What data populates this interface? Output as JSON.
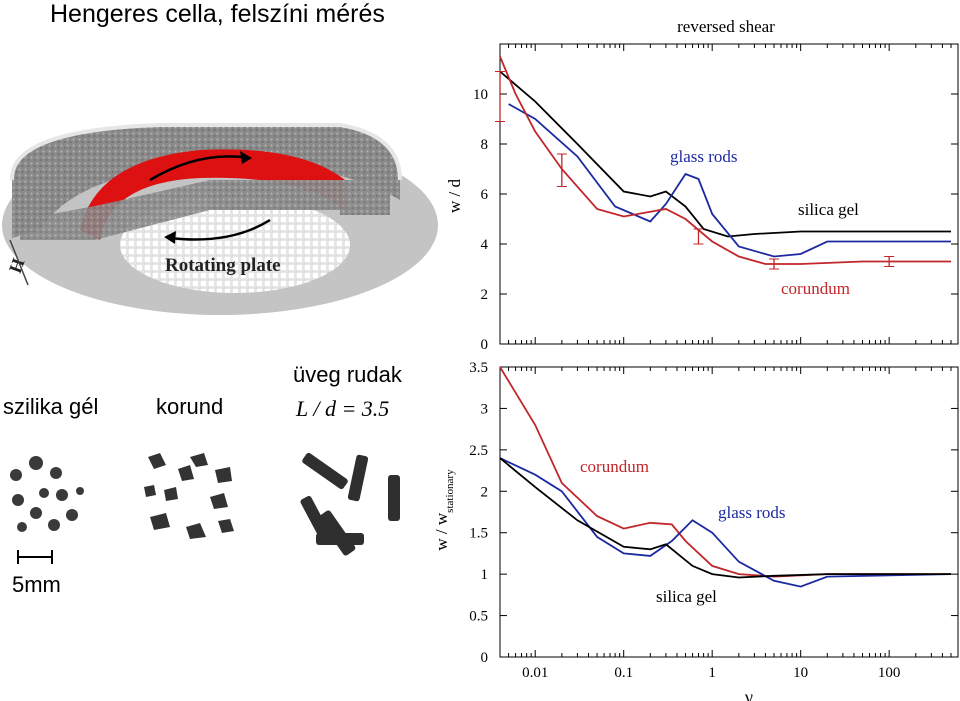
{
  "title": "Hengeres cella, felszíni mérés",
  "apparatus": {
    "label_rotating_plate": "Rotating plate",
    "label_height": "H"
  },
  "materials": {
    "silica": "szilika gél",
    "korund": "korund",
    "rods": "üveg rudak",
    "ratio": "L / d = 3.5",
    "scale": "5mm"
  },
  "colors": {
    "silica_gel": "#000000",
    "glass_rods": "#1c2aa0",
    "corundum": "#c0262a"
  },
  "chart_data": [
    {
      "type": "line",
      "title": "reversed shear",
      "ylabel": "w / d",
      "xscale": "log",
      "xlim": [
        0.004,
        600
      ],
      "ylim": [
        0,
        12
      ],
      "yticks": [
        "0",
        "2",
        "4",
        "6",
        "8",
        "10"
      ],
      "series": [
        {
          "name": "silica gel",
          "color": "#000000",
          "x": [
            0.004,
            0.01,
            0.03,
            0.1,
            0.2,
            0.3,
            0.5,
            0.8,
            1.5,
            3,
            10,
            500
          ],
          "y": [
            10.9,
            9.7,
            8.0,
            6.1,
            5.9,
            6.1,
            5.5,
            4.6,
            4.3,
            4.4,
            4.5,
            4.5
          ]
        },
        {
          "name": "glass rods",
          "color": "#1c2aa0",
          "x": [
            0.005,
            0.01,
            0.03,
            0.08,
            0.2,
            0.3,
            0.5,
            0.7,
            1,
            2,
            5,
            10,
            20,
            500
          ],
          "y": [
            9.6,
            9.0,
            7.5,
            5.5,
            4.9,
            5.6,
            6.8,
            6.6,
            5.2,
            3.9,
            3.5,
            3.6,
            4.1,
            4.1
          ]
        },
        {
          "name": "corundum",
          "color": "#c0262a",
          "x": [
            0.004,
            0.006,
            0.01,
            0.02,
            0.05,
            0.1,
            0.3,
            0.5,
            1,
            2,
            4,
            10,
            50,
            500
          ],
          "y": [
            11.5,
            10.0,
            8.5,
            7.0,
            5.4,
            5.1,
            5.4,
            5.0,
            4.1,
            3.5,
            3.2,
            3.2,
            3.3,
            3.3
          ]
        }
      ],
      "error_bars": [
        {
          "x": 0.004,
          "y": 9.9,
          "low": 8.9,
          "high": 10.9
        },
        {
          "x": 0.02,
          "y": 7.0,
          "low": 6.3,
          "high": 7.6
        },
        {
          "x": 0.7,
          "y": 4.3,
          "low": 4.0,
          "high": 4.6
        },
        {
          "x": 5,
          "y": 3.2,
          "low": 3.0,
          "high": 3.4
        },
        {
          "x": 100,
          "y": 3.3,
          "low": 3.1,
          "high": 3.5
        }
      ]
    },
    {
      "type": "line",
      "ylabel": "w / w",
      "ylabel_sub": "stationary",
      "xlabel": "γ",
      "xscale": "log",
      "xlim": [
        0.004,
        600
      ],
      "ylim": [
        0,
        3.5
      ],
      "xticks": [
        "0.01",
        "0.1",
        "1",
        "10",
        "100"
      ],
      "yticks": [
        "0",
        "0.5",
        "1",
        "1.5",
        "2",
        "2.5",
        "3",
        "3.5"
      ],
      "series": [
        {
          "name": "corundum",
          "color": "#c0262a",
          "x": [
            0.004,
            0.01,
            0.02,
            0.05,
            0.1,
            0.2,
            0.35,
            0.5,
            1,
            2,
            5,
            20,
            500
          ],
          "y": [
            3.5,
            2.8,
            2.1,
            1.7,
            1.55,
            1.62,
            1.6,
            1.4,
            1.1,
            1.0,
            0.97,
            1.0,
            1.0
          ]
        },
        {
          "name": "glass rods",
          "color": "#1c2aa0",
          "x": [
            0.004,
            0.01,
            0.02,
            0.05,
            0.1,
            0.2,
            0.35,
            0.6,
            1,
            2,
            5,
            10,
            20,
            500
          ],
          "y": [
            2.4,
            2.2,
            2.0,
            1.45,
            1.25,
            1.22,
            1.4,
            1.65,
            1.5,
            1.15,
            0.92,
            0.85,
            0.97,
            1.0
          ]
        },
        {
          "name": "silica gel",
          "color": "#000000",
          "x": [
            0.004,
            0.01,
            0.03,
            0.1,
            0.2,
            0.3,
            0.6,
            1,
            2,
            5,
            20,
            500
          ],
          "y": [
            2.4,
            2.05,
            1.65,
            1.33,
            1.3,
            1.36,
            1.1,
            1.0,
            0.96,
            0.98,
            1.0,
            1.0
          ]
        }
      ]
    }
  ]
}
